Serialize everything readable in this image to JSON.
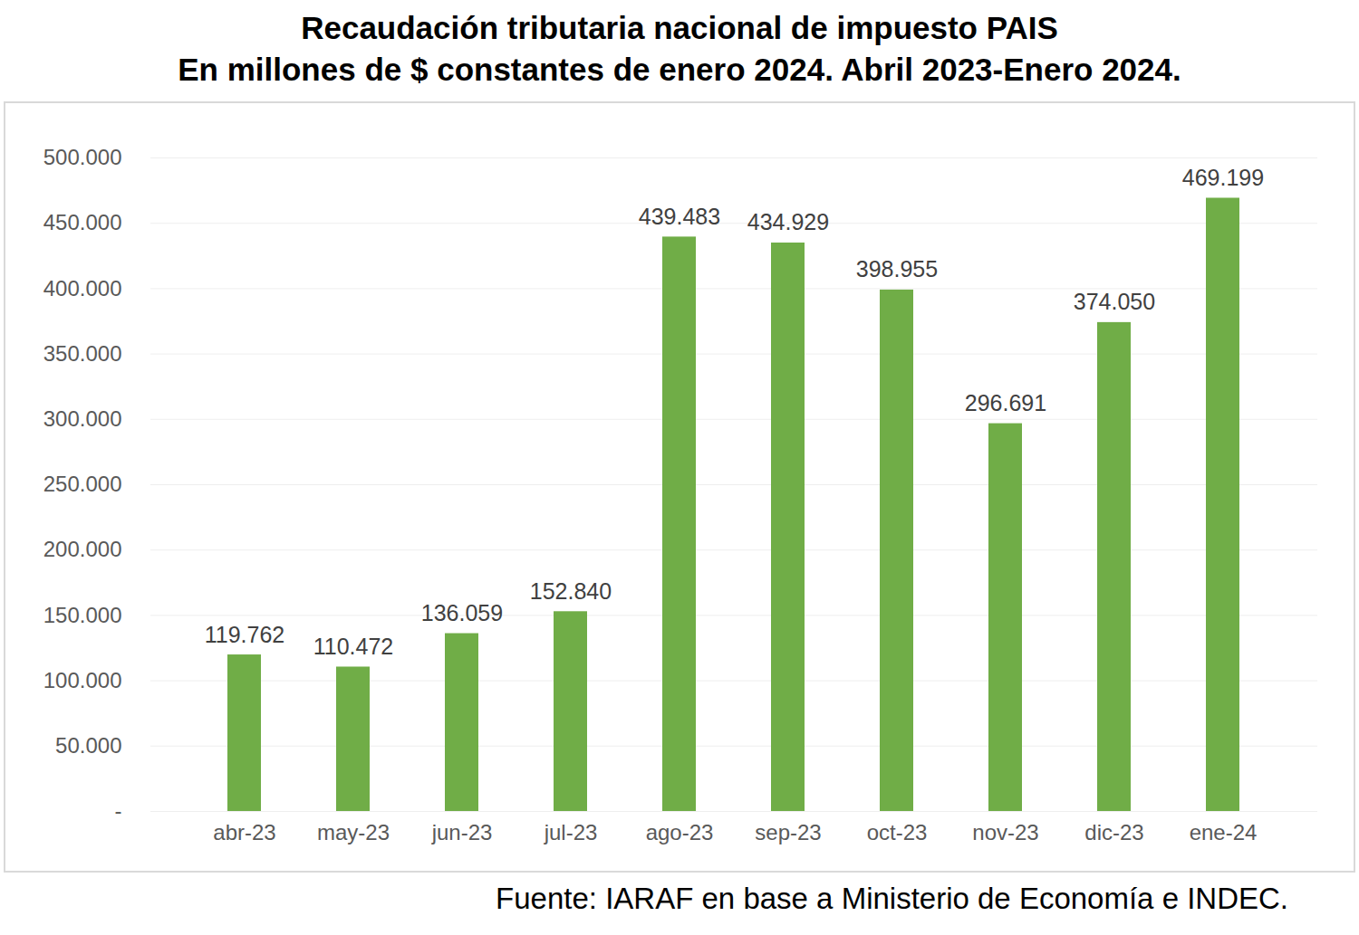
{
  "chart_data": {
    "type": "bar",
    "title": "Recaudación tributaria nacional de impuesto PAIS",
    "subtitle": "En millones de $ constantes de enero 2024. Abril 2023-Enero 2024.",
    "caption": "Fuente: IARAF en base a Ministerio de Economía e INDEC.",
    "categories": [
      "abr-23",
      "may-23",
      "jun-23",
      "jul-23",
      "ago-23",
      "sep-23",
      "oct-23",
      "nov-23",
      "dic-23",
      "ene-24"
    ],
    "values": [
      119762,
      110472,
      136059,
      152840,
      439483,
      434929,
      398955,
      296691,
      374050,
      469199
    ],
    "value_labels": [
      "119.762",
      "110.472",
      "136.059",
      "152.840",
      "439.483",
      "434.929",
      "398.955",
      "296.691",
      "374.050",
      "469.199"
    ],
    "color": "#70ad47",
    "ylim": [
      0,
      500000
    ],
    "yticks": [
      {
        "value": 0,
        "label": "-"
      },
      {
        "value": 50000,
        "label": "50.000"
      },
      {
        "value": 100000,
        "label": "100.000"
      },
      {
        "value": 150000,
        "label": "150.000"
      },
      {
        "value": 200000,
        "label": "200.000"
      },
      {
        "value": 250000,
        "label": "250.000"
      },
      {
        "value": 300000,
        "label": "300.000"
      },
      {
        "value": 350000,
        "label": "350.000"
      },
      {
        "value": 400000,
        "label": "400.000"
      },
      {
        "value": 450000,
        "label": "450.000"
      },
      {
        "value": 500000,
        "label": "500.000"
      }
    ],
    "grid": true,
    "data_labels": true
  }
}
